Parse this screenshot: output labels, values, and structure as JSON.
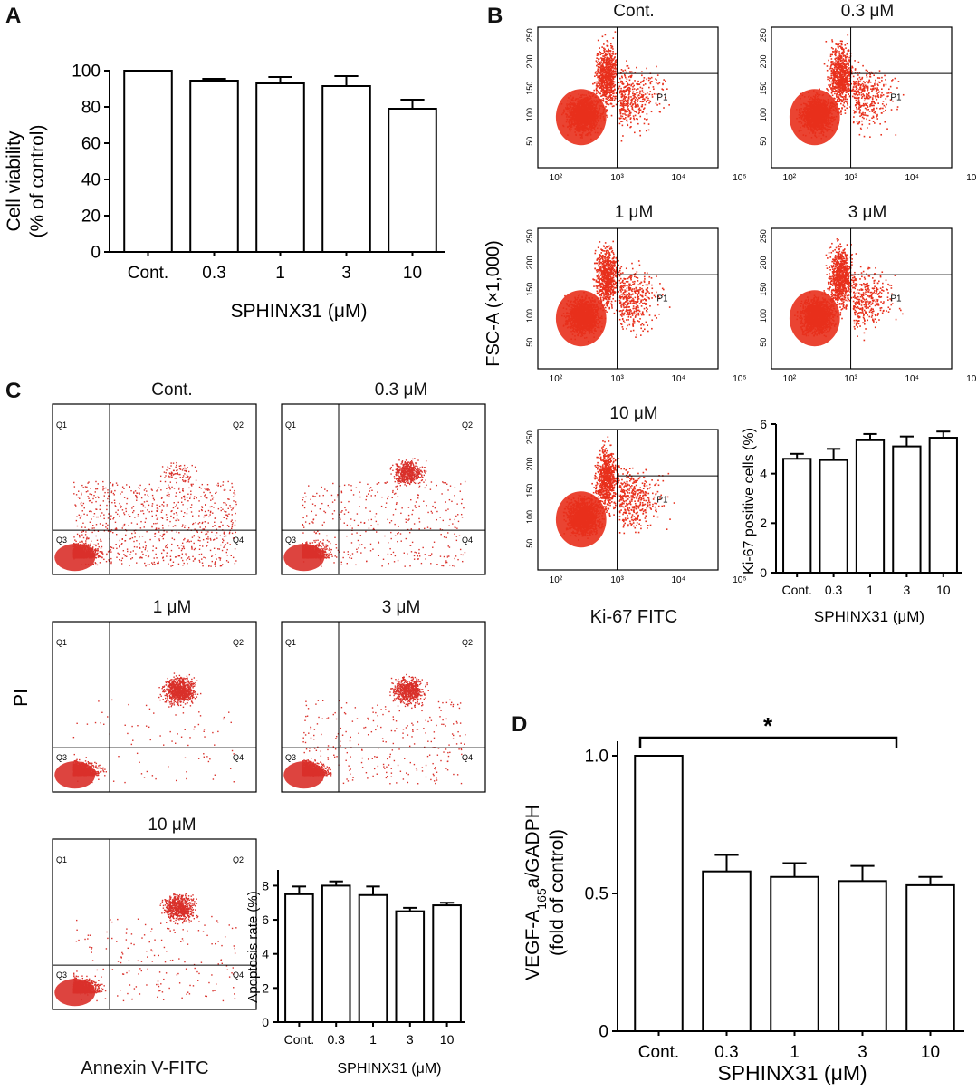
{
  "panels": {
    "a": "A",
    "b": "B",
    "c": "C",
    "d": "D"
  },
  "chart_data": [
    {
      "id": "A",
      "type": "bar",
      "categories": [
        "Cont.",
        "0.3",
        "1",
        "3",
        "10"
      ],
      "values": [
        100,
        94.5,
        93,
        91.5,
        79
      ],
      "errors": [
        0,
        1,
        3.5,
        5.5,
        5
      ],
      "ylim": [
        0,
        100
      ],
      "yticks": [
        "0",
        "20",
        "40",
        "60",
        "80",
        "100"
      ],
      "ylabel_line1": "Cell viability",
      "ylabel_line2": "(% of control)",
      "xlabel": "SPHINX31 (μM)"
    },
    {
      "id": "B-scatter",
      "type": "scatter",
      "plots": [
        {
          "title": "Cont.",
          "gate": "P1"
        },
        {
          "title": "0.3 μM",
          "gate": "P1"
        },
        {
          "title": "1 μM",
          "gate": "P1"
        },
        {
          "title": "3 μM",
          "gate": "P1"
        },
        {
          "title": "10 μM",
          "gate": "P1"
        }
      ],
      "yticks": [
        "50",
        "100",
        "150",
        "200",
        "250"
      ],
      "xticks": [
        "10²",
        "10³",
        "10⁴",
        "10⁵"
      ],
      "ylabel": "FSC-A (×1,000)",
      "xlabel": "Ki-67 FITC",
      "color": "#e8301c"
    },
    {
      "id": "B-bar",
      "type": "bar",
      "categories": [
        "Cont.",
        "0.3",
        "1",
        "3",
        "10"
      ],
      "values": [
        4.6,
        4.55,
        5.35,
        5.1,
        5.45
      ],
      "errors": [
        0.2,
        0.45,
        0.25,
        0.4,
        0.25
      ],
      "ylim": [
        0,
        6
      ],
      "yticks": [
        "0",
        "2",
        "4",
        "6"
      ],
      "ylabel": "Ki-67 positive cells (%)",
      "xlabel": "SPHINX31 (μM)"
    },
    {
      "id": "C-scatter",
      "type": "scatter",
      "plots": [
        {
          "title": "Cont."
        },
        {
          "title": "0.3 μM"
        },
        {
          "title": "1 μM"
        },
        {
          "title": "3 μM"
        },
        {
          "title": "10 μM"
        }
      ],
      "quadrants": [
        "Q1",
        "Q2",
        "Q3",
        "Q4"
      ],
      "ylabel": "PI",
      "xlabel": "Annexin V-FITC",
      "color": "#d9302a"
    },
    {
      "id": "C-bar",
      "type": "bar",
      "categories": [
        "Cont.",
        "0.3",
        "1",
        "3",
        "10"
      ],
      "values": [
        7.5,
        8.0,
        7.45,
        6.5,
        6.85
      ],
      "errors": [
        0.45,
        0.25,
        0.5,
        0.2,
        0.15
      ],
      "ylim": [
        0,
        8.5
      ],
      "yticks": [
        "0",
        "2",
        "4",
        "6",
        "8"
      ],
      "ylabel": "Apoptosis rate (%)",
      "xlabel": "SPHINX31 (μM)"
    },
    {
      "id": "D",
      "type": "bar",
      "categories": [
        "Cont.",
        "0.3",
        "1",
        "3",
        "10"
      ],
      "values": [
        1.0,
        0.58,
        0.56,
        0.545,
        0.53
      ],
      "errors": [
        0,
        0.06,
        0.05,
        0.055,
        0.03
      ],
      "ylim": [
        0,
        1.0
      ],
      "yticks": [
        "0",
        "0.5",
        "1.0"
      ],
      "ylabel_line1_pre": "VEGF-A",
      "ylabel_line1_sub": "165",
      "ylabel_line1_post": "a/GADPH",
      "ylabel_line2": "(fold of control)",
      "xlabel": "SPHINX31 (μM)",
      "significance": "*"
    }
  ]
}
